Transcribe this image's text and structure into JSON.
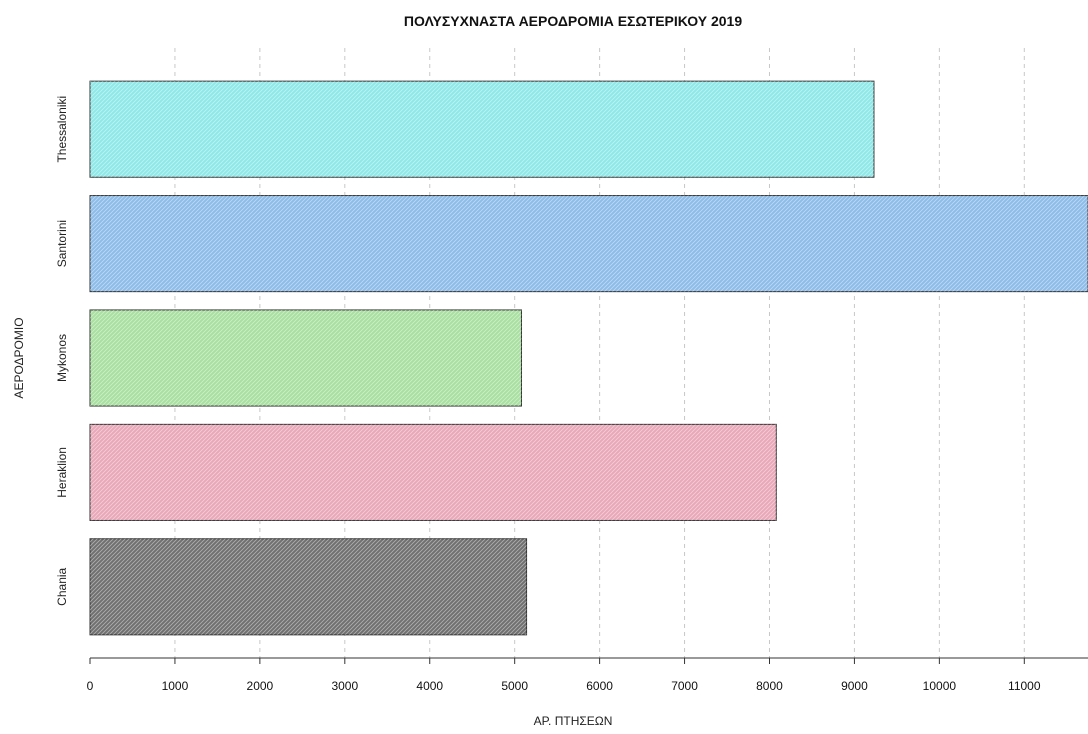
{
  "chart_data": {
    "type": "bar",
    "orientation": "horizontal",
    "title": "ΠΟΛΥΣΥΧΝΑΣΤΑ ΑΕΡΟΔΡΟΜΙΑ ΕΣΩΤΕΡΙΚΟΥ 2019",
    "xlabel": "ΑΡ. ΠΤΗΣΕΩΝ",
    "ylabel": "ΑΕΡΟΔΡΟΜΙΟ",
    "categories": [
      "Thessaloniki",
      "Santorini",
      "Mykonos",
      "Heraklion",
      "Chania"
    ],
    "values": [
      9230,
      11750,
      5080,
      8080,
      5140
    ],
    "colors": [
      "#8ee8e8",
      "#8cbce8",
      "#a8e0a0",
      "#e8a8b8",
      "#707070"
    ],
    "xlim": [
      0,
      11750
    ],
    "xticks": [
      "0",
      "1000",
      "2000",
      "3000",
      "4000",
      "5000",
      "6000",
      "7000",
      "8000",
      "9000",
      "10000",
      "11000"
    ],
    "grid": true,
    "legend": "none"
  }
}
